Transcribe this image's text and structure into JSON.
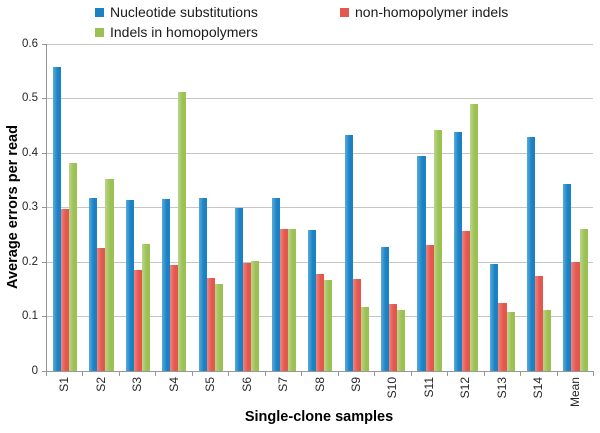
{
  "chart_data": {
    "type": "bar",
    "title": "",
    "xlabel": "Single-clone samples",
    "ylabel": "Average errors per read",
    "ylim": [
      0,
      0.6
    ],
    "yticks": [
      "0",
      "0.1",
      "0.2",
      "0.3",
      "0.4",
      "0.5",
      "0.6"
    ],
    "grid": true,
    "legend_position": "top",
    "categories": [
      "S1",
      "S2",
      "S3",
      "S4",
      "S5",
      "S6",
      "S7",
      "S8",
      "S9",
      "S10",
      "S11",
      "S12",
      "S13",
      "S14",
      "Mean"
    ],
    "series": [
      {
        "name": "Nucleotide substitutions",
        "color": "#1a82c4",
        "color_light": "#58a9da",
        "values": [
          0.558,
          0.318,
          0.314,
          0.315,
          0.318,
          0.3,
          0.317,
          0.259,
          0.433,
          0.228,
          0.394,
          0.438,
          0.196,
          0.43,
          0.344
        ]
      },
      {
        "name": "non-homopolymer indels",
        "color": "#e4574e",
        "color_light": "#ef837c",
        "values": [
          0.297,
          0.226,
          0.186,
          0.194,
          0.17,
          0.199,
          0.261,
          0.178,
          0.168,
          0.123,
          0.231,
          0.257,
          0.125,
          0.174,
          0.2
        ]
      },
      {
        "name": "Indels in homopolymers",
        "color": "#9cc153",
        "color_light": "#bbd489",
        "values": [
          0.381,
          0.352,
          0.233,
          0.512,
          0.159,
          0.201,
          0.261,
          0.167,
          0.118,
          0.112,
          0.443,
          0.489,
          0.108,
          0.112,
          0.261
        ]
      }
    ],
    "plot_colors": {
      "gridline": "#c6c6c6",
      "axis": "#979797"
    }
  }
}
